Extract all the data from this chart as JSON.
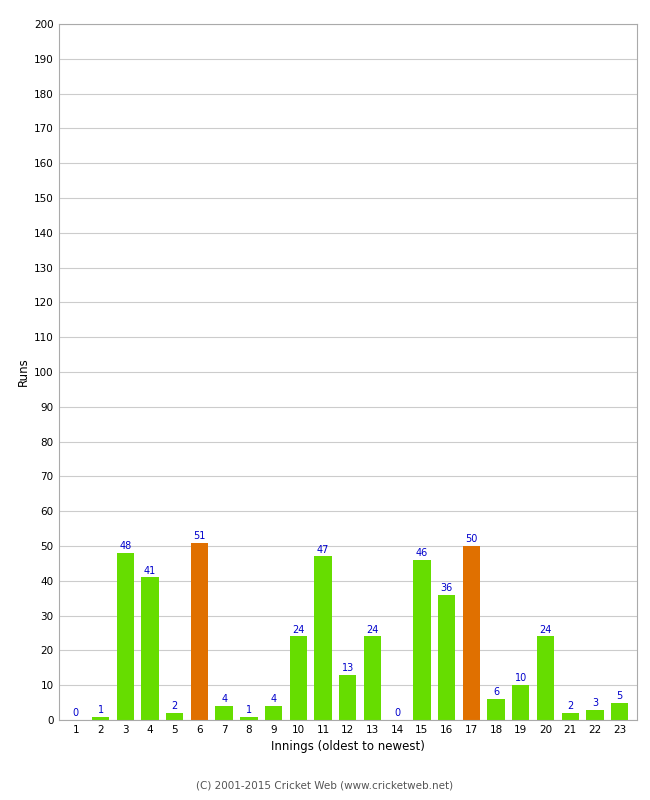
{
  "innings": [
    1,
    2,
    3,
    4,
    5,
    6,
    7,
    8,
    9,
    10,
    11,
    12,
    13,
    14,
    15,
    16,
    17,
    18,
    19,
    20,
    21,
    22,
    23
  ],
  "runs": [
    0,
    1,
    48,
    41,
    2,
    51,
    4,
    1,
    4,
    24,
    47,
    13,
    24,
    0,
    46,
    36,
    50,
    6,
    10,
    24,
    2,
    3,
    5
  ],
  "colors": [
    "#66dd00",
    "#66dd00",
    "#66dd00",
    "#66dd00",
    "#66dd00",
    "#e07000",
    "#66dd00",
    "#66dd00",
    "#66dd00",
    "#66dd00",
    "#66dd00",
    "#66dd00",
    "#66dd00",
    "#66dd00",
    "#66dd00",
    "#66dd00",
    "#e07000",
    "#66dd00",
    "#66dd00",
    "#66dd00",
    "#66dd00",
    "#66dd00",
    "#66dd00"
  ],
  "ylabel": "Runs",
  "xlabel": "Innings (oldest to newest)",
  "ylim": [
    0,
    200
  ],
  "yticks": [
    0,
    10,
    20,
    30,
    40,
    50,
    60,
    70,
    80,
    90,
    100,
    110,
    120,
    130,
    140,
    150,
    160,
    170,
    180,
    190,
    200
  ],
  "label_color": "#0000cc",
  "label_fontsize": 7,
  "bar_width": 0.7,
  "footer": "(C) 2001-2015 Cricket Web (www.cricketweb.net)",
  "bg_color": "#ffffff",
  "grid_color": "#cccccc"
}
